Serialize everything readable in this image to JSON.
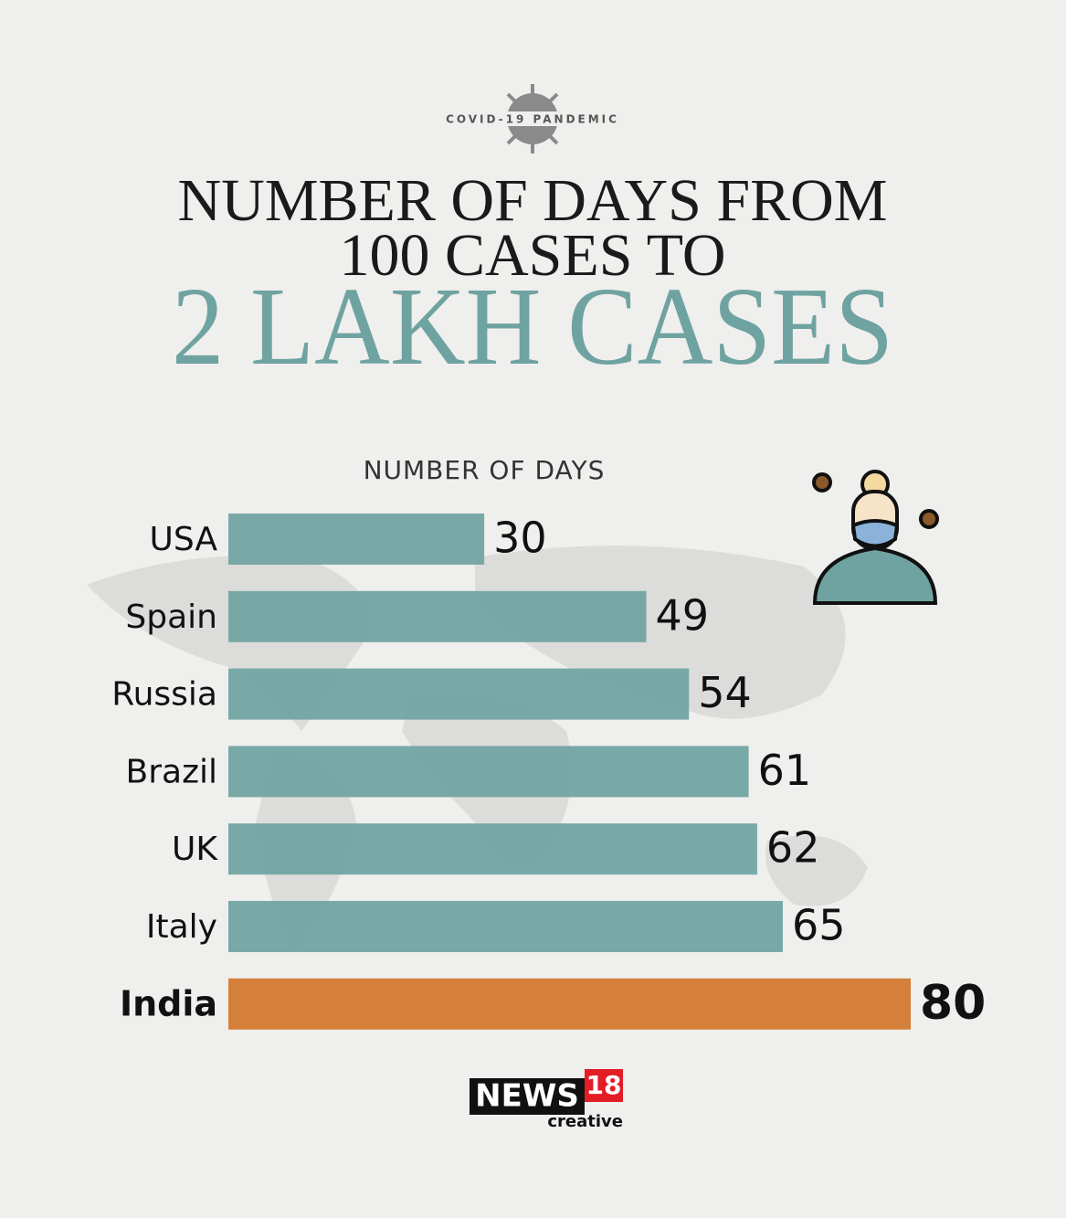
{
  "chart_data": {
    "type": "bar",
    "kicker": "COVID-19 PANDEMIC",
    "title_lines": [
      "NUMBER OF DAYS FROM",
      "100 CASES TO"
    ],
    "headline": "2 LAKH CASES",
    "x_label": "NUMBER OF DAYS",
    "categories": [
      "USA",
      "Spain",
      "Russia",
      "Brazil",
      "UK",
      "Italy",
      "India"
    ],
    "values": [
      30,
      49,
      54,
      61,
      62,
      65,
      80
    ],
    "colors": [
      "#6fa3a1",
      "#6fa3a1",
      "#6fa3a1",
      "#6fa3a1",
      "#6fa3a1",
      "#6fa3a1",
      "#d4803a"
    ],
    "label_weights": [
      "normal",
      "normal",
      "normal",
      "normal",
      "normal",
      "normal",
      "bold"
    ],
    "logo": {
      "brand": "NEWS",
      "number": "18",
      "tagline": "creative"
    }
  }
}
